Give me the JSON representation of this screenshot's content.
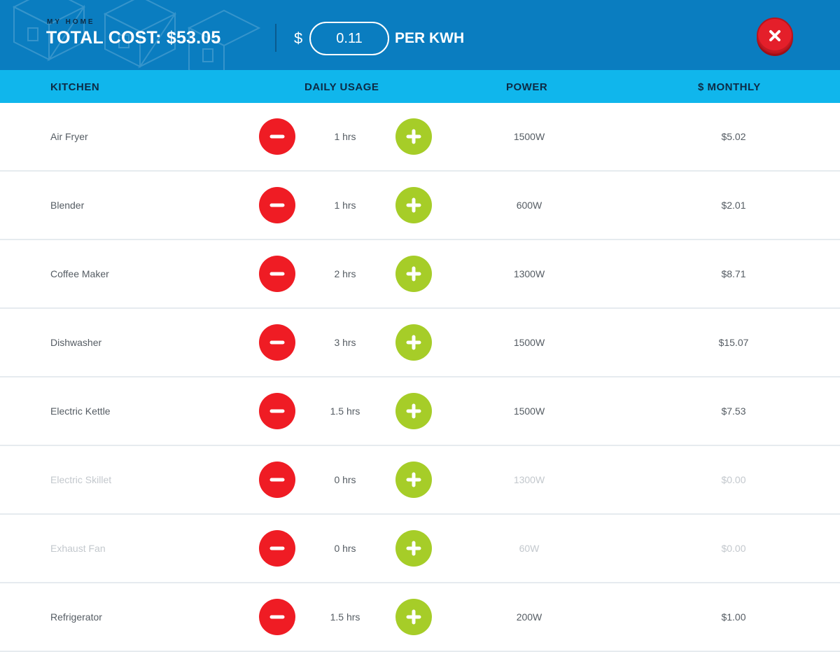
{
  "header": {
    "subtitle": "MY HOME",
    "total_cost": "TOTAL COST: $53.05",
    "currency_symbol": "$",
    "rate_value": "0.11",
    "rate_unit": "PER KWH",
    "close_icon": "close-icon"
  },
  "columns": {
    "room": "KITCHEN",
    "usage": "DAILY USAGE",
    "power": "POWER",
    "monthly": "$ MONTHLY"
  },
  "rows": [
    {
      "name": "Air Fryer",
      "hours": "1 hrs",
      "power": "1500W",
      "monthly": "$5.02",
      "active": true
    },
    {
      "name": "Blender",
      "hours": "1 hrs",
      "power": "600W",
      "monthly": "$2.01",
      "active": true
    },
    {
      "name": "Coffee Maker",
      "hours": "2 hrs",
      "power": "1300W",
      "monthly": "$8.71",
      "active": true
    },
    {
      "name": "Dishwasher",
      "hours": "3 hrs",
      "power": "1500W",
      "monthly": "$15.07",
      "active": true
    },
    {
      "name": "Electric Kettle",
      "hours": "1.5 hrs",
      "power": "1500W",
      "monthly": "$7.53",
      "active": true
    },
    {
      "name": "Electric Skillet",
      "hours": "0 hrs",
      "power": "1300W",
      "monthly": "$0.00",
      "active": false
    },
    {
      "name": "Exhaust Fan",
      "hours": "0 hrs",
      "power": "60W",
      "monthly": "$0.00",
      "active": false
    },
    {
      "name": "Refrigerator",
      "hours": "1.5 hrs",
      "power": "200W",
      "monthly": "$1.00",
      "active": true
    }
  ],
  "colors": {
    "header_bg": "#0a7dc0",
    "table_head_bg": "#10b6ec",
    "minus_button": "#ef1c24",
    "plus_button": "#a6cd28",
    "close_button": "#e41f2a"
  },
  "icons": {
    "minus": "minus-icon",
    "plus": "plus-icon"
  }
}
